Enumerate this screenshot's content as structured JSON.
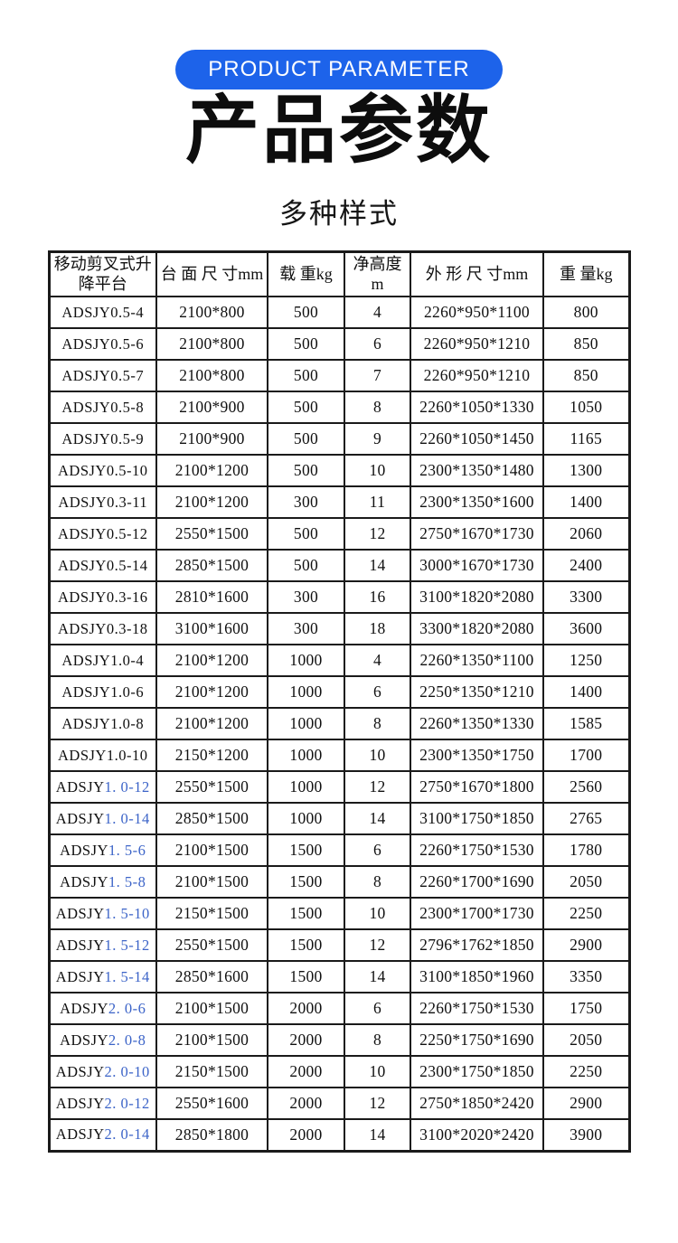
{
  "badge": {
    "label": "PRODUCT PARAMETER"
  },
  "title": "产品参数",
  "subtitle": "多种样式",
  "colors": {
    "accent": "#1d63ea",
    "model_suffix_blue": "#3c64c8",
    "table_border": "#1a1a1a"
  },
  "table": {
    "headers": [
      "移动剪叉式升降平台",
      "台 面 尺 寸mm",
      "载 重kg",
      "净高度m",
      "外 形 尺 寸mm",
      "重 量kg"
    ],
    "rows": [
      {
        "model_prefix": "ADSJY",
        "model_suffix": "0.5-4",
        "suffix_blue": false,
        "platform": "2100*800",
        "load": "500",
        "height": "4",
        "dims": "2260*950*1100",
        "weight": "800"
      },
      {
        "model_prefix": "ADSJY",
        "model_suffix": "0.5-6",
        "suffix_blue": false,
        "platform": "2100*800",
        "load": "500",
        "height": "6",
        "dims": "2260*950*1210",
        "weight": "850"
      },
      {
        "model_prefix": "ADSJY",
        "model_suffix": "0.5-7",
        "suffix_blue": false,
        "platform": "2100*800",
        "load": "500",
        "height": "7",
        "dims": "2260*950*1210",
        "weight": "850"
      },
      {
        "model_prefix": "ADSJY",
        "model_suffix": "0.5-8",
        "suffix_blue": false,
        "platform": "2100*900",
        "load": "500",
        "height": "8",
        "dims": "2260*1050*1330",
        "weight": "1050"
      },
      {
        "model_prefix": "ADSJY",
        "model_suffix": "0.5-9",
        "suffix_blue": false,
        "platform": "2100*900",
        "load": "500",
        "height": "9",
        "dims": "2260*1050*1450",
        "weight": "1165"
      },
      {
        "model_prefix": "ADSJY",
        "model_suffix": "0.5-10",
        "suffix_blue": false,
        "platform": "2100*1200",
        "load": "500",
        "height": "10",
        "dims": "2300*1350*1480",
        "weight": "1300"
      },
      {
        "model_prefix": "ADSJY",
        "model_suffix": "0.3-11",
        "suffix_blue": false,
        "platform": "2100*1200",
        "load": "300",
        "height": "11",
        "dims": "2300*1350*1600",
        "weight": "1400"
      },
      {
        "model_prefix": "ADSJY",
        "model_suffix": "0.5-12",
        "suffix_blue": false,
        "platform": "2550*1500",
        "load": "500",
        "height": "12",
        "dims": "2750*1670*1730",
        "weight": "2060"
      },
      {
        "model_prefix": "ADSJY",
        "model_suffix": "0.5-14",
        "suffix_blue": false,
        "platform": "2850*1500",
        "load": "500",
        "height": "14",
        "dims": "3000*1670*1730",
        "weight": "2400"
      },
      {
        "model_prefix": "ADSJY",
        "model_suffix": "0.3-16",
        "suffix_blue": false,
        "platform": "2810*1600",
        "load": "300",
        "height": "16",
        "dims": "3100*1820*2080",
        "weight": "3300"
      },
      {
        "model_prefix": "ADSJY",
        "model_suffix": "0.3-18",
        "suffix_blue": false,
        "platform": "3100*1600",
        "load": "300",
        "height": "18",
        "dims": "3300*1820*2080",
        "weight": "3600"
      },
      {
        "model_prefix": "ADSJY",
        "model_suffix": "1.0-4",
        "suffix_blue": false,
        "platform": "2100*1200",
        "load": "1000",
        "height": "4",
        "dims": "2260*1350*1100",
        "weight": "1250"
      },
      {
        "model_prefix": "ADSJY",
        "model_suffix": "1.0-6",
        "suffix_blue": false,
        "platform": "2100*1200",
        "load": "1000",
        "height": "6",
        "dims": "2250*1350*1210",
        "weight": "1400"
      },
      {
        "model_prefix": "ADSJY",
        "model_suffix": "1.0-8",
        "suffix_blue": false,
        "platform": "2100*1200",
        "load": "1000",
        "height": "8",
        "dims": "2260*1350*1330",
        "weight": "1585"
      },
      {
        "model_prefix": "ADSJY",
        "model_suffix": "1.0-10",
        "suffix_blue": false,
        "platform": "2150*1200",
        "load": "1000",
        "height": "10",
        "dims": "2300*1350*1750",
        "weight": "1700"
      },
      {
        "model_prefix": "ADSJY",
        "model_suffix": "1. 0-12",
        "suffix_blue": true,
        "platform": "2550*1500",
        "load": "1000",
        "height": "12",
        "dims": "2750*1670*1800",
        "weight": "2560"
      },
      {
        "model_prefix": "ADSJY",
        "model_suffix": "1. 0-14",
        "suffix_blue": true,
        "platform": "2850*1500",
        "load": "1000",
        "height": "14",
        "dims": "3100*1750*1850",
        "weight": "2765"
      },
      {
        "model_prefix": "ADSJY",
        "model_suffix": "1. 5-6",
        "suffix_blue": true,
        "platform": "2100*1500",
        "load": "1500",
        "height": "6",
        "dims": "2260*1750*1530",
        "weight": "1780"
      },
      {
        "model_prefix": "ADSJY",
        "model_suffix": "1. 5-8",
        "suffix_blue": true,
        "platform": "2100*1500",
        "load": "1500",
        "height": "8",
        "dims": "2260*1700*1690",
        "weight": "2050"
      },
      {
        "model_prefix": "ADSJY",
        "model_suffix": "1. 5-10",
        "suffix_blue": true,
        "platform": "2150*1500",
        "load": "1500",
        "height": "10",
        "dims": "2300*1700*1730",
        "weight": "2250"
      },
      {
        "model_prefix": "ADSJY",
        "model_suffix": "1. 5-12",
        "suffix_blue": true,
        "platform": "2550*1500",
        "load": "1500",
        "height": "12",
        "dims": "2796*1762*1850",
        "weight": "2900"
      },
      {
        "model_prefix": "ADSJY",
        "model_suffix": "1. 5-14",
        "suffix_blue": true,
        "platform": "2850*1600",
        "load": "1500",
        "height": "14",
        "dims": "3100*1850*1960",
        "weight": "3350"
      },
      {
        "model_prefix": "ADSJY",
        "model_suffix": "2. 0-6",
        "suffix_blue": true,
        "platform": "2100*1500",
        "load": "2000",
        "height": "6",
        "dims": "2260*1750*1530",
        "weight": "1750"
      },
      {
        "model_prefix": "ADSJY",
        "model_suffix": "2. 0-8",
        "suffix_blue": true,
        "platform": "2100*1500",
        "load": "2000",
        "height": "8",
        "dims": "2250*1750*1690",
        "weight": "2050"
      },
      {
        "model_prefix": "ADSJY",
        "model_suffix": "2. 0-10",
        "suffix_blue": true,
        "platform": "2150*1500",
        "load": "2000",
        "height": "10",
        "dims": "2300*1750*1850",
        "weight": "2250"
      },
      {
        "model_prefix": "ADSJY",
        "model_suffix": "2. 0-12",
        "suffix_blue": true,
        "platform": "2550*1600",
        "load": "2000",
        "height": "12",
        "dims": "2750*1850*2420",
        "weight": "2900"
      },
      {
        "model_prefix": "ADSJY",
        "model_suffix": "2. 0-14",
        "suffix_blue": true,
        "platform": "2850*1800",
        "load": "2000",
        "height": "14",
        "dims": "3100*2020*2420",
        "weight": "3900"
      }
    ]
  }
}
